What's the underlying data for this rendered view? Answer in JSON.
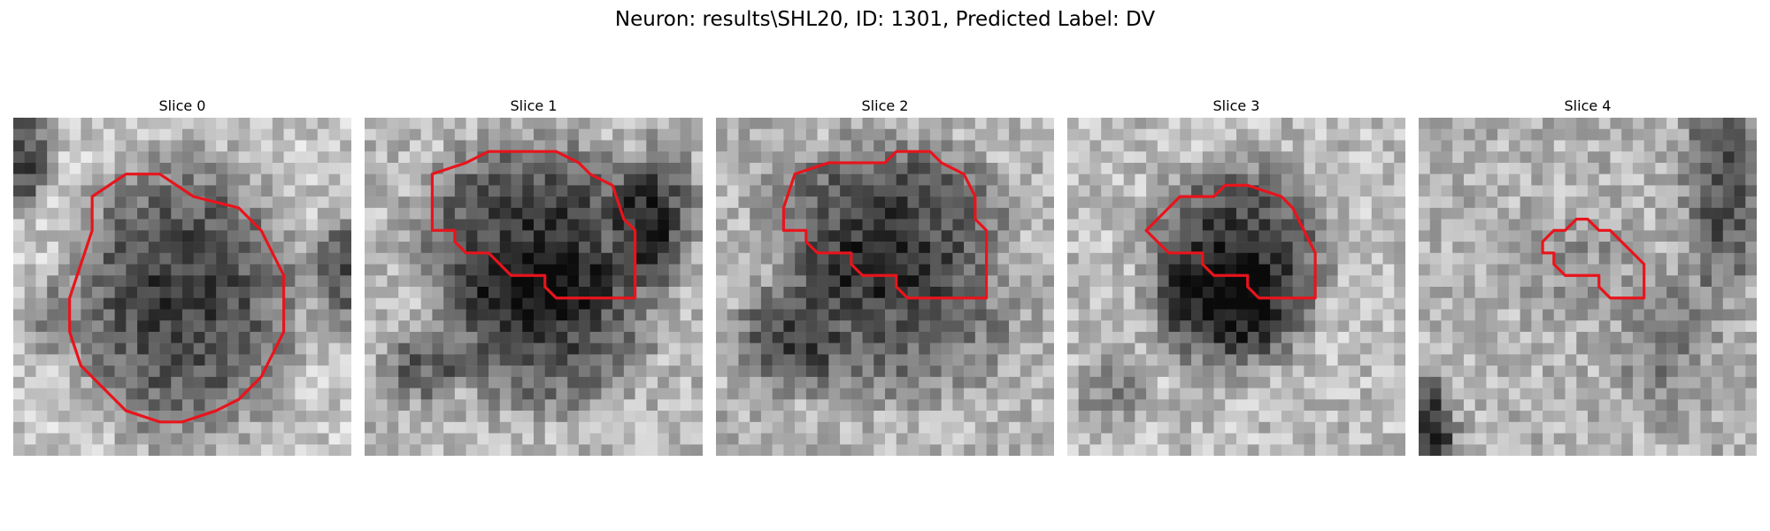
{
  "figure": {
    "title": "Neuron: results\\SHL20, ID: 1301, Predicted Label: DV"
  },
  "colors": {
    "contour": "#e8141c",
    "background": "#ffffff"
  },
  "panels": [
    {
      "title": "Slice 0"
    },
    {
      "title": "Slice 1"
    },
    {
      "title": "Slice 2"
    },
    {
      "title": "Slice 3"
    },
    {
      "title": "Slice 4"
    }
  ]
}
